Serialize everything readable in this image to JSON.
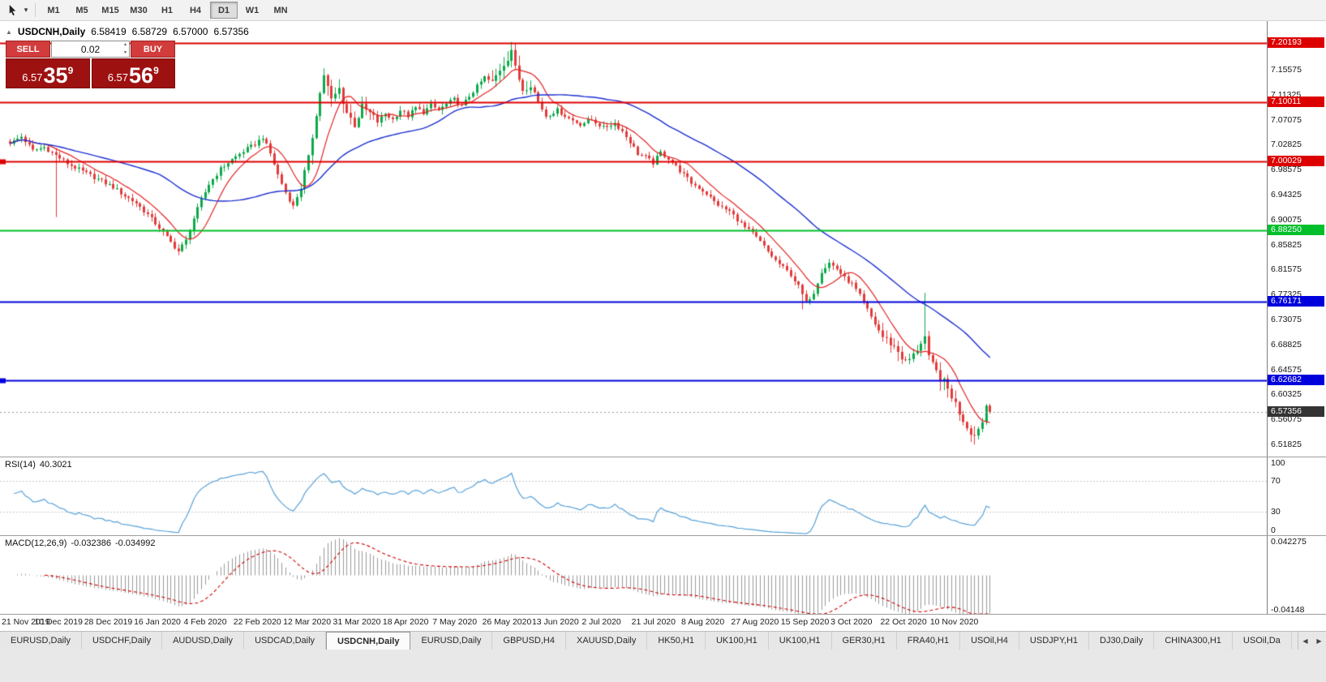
{
  "icons": {
    "collapse": "▲",
    "dropdown": "▾",
    "spinner_up": "▲",
    "spinner_down": "▼",
    "tab_scroll_left": "◀",
    "tab_scroll_right": "▶"
  },
  "toolbar": {
    "timeframes": [
      {
        "label": "M1",
        "active": false
      },
      {
        "label": "M5",
        "active": false
      },
      {
        "label": "M15",
        "active": false
      },
      {
        "label": "M30",
        "active": false
      },
      {
        "label": "H1",
        "active": false
      },
      {
        "label": "H4",
        "active": false
      },
      {
        "label": "D1",
        "active": true
      },
      {
        "label": "W1",
        "active": false
      },
      {
        "label": "MN",
        "active": false
      }
    ]
  },
  "chart": {
    "symbol_title": "USDCNH,Daily",
    "ohlc": {
      "open": "6.58419",
      "high": "6.58729",
      "low": "6.57000",
      "close": "6.57356"
    },
    "trade_panel": {
      "sell_label": "SELL",
      "buy_label": "BUY",
      "volume": "0.02",
      "sell_price": {
        "big": "6.57",
        "pips": "35",
        "sup": "9"
      },
      "buy_price": {
        "big": "6.57",
        "pips": "56",
        "sup": "9"
      }
    },
    "price_axis_labels": [
      "7.15575",
      "7.11325",
      "7.07075",
      "7.02825",
      "6.98575",
      "6.94325",
      "6.90075",
      "6.85825",
      "6.81575",
      "6.77325",
      "6.73075",
      "6.68825",
      "6.64575",
      "6.60325",
      "6.56075",
      "6.51825"
    ],
    "hlines": [
      {
        "price": 7.20193,
        "label": "7.20193",
        "color": "#dd0000",
        "width": 2,
        "left_marker": false
      },
      {
        "price": 7.10011,
        "label": "7.10011",
        "color": "#dd0000",
        "width": 2,
        "left_marker": false
      },
      {
        "price": 7.00029,
        "label": "7.00029",
        "color": "#dd0000",
        "width": 2,
        "left_marker": true
      },
      {
        "price": 6.8825,
        "label": "6.88250",
        "color": "#00bf2a",
        "width": 2,
        "left_marker": false
      },
      {
        "price": 6.76171,
        "label": "6.76171",
        "color": "#0000dd",
        "width": 2,
        "left_marker": false
      },
      {
        "price": 6.62682,
        "label": "6.62682",
        "color": "#0000dd",
        "width": 2,
        "left_marker": true
      }
    ],
    "current_price": {
      "value": 6.57356,
      "label": "6.57356",
      "color": "#333333"
    },
    "date_labels": [
      {
        "i": 0,
        "text": "21 Nov 2019"
      },
      {
        "i": 13,
        "text": "10 Dec 2019"
      },
      {
        "i": 26,
        "text": "28 Dec 2019"
      },
      {
        "i": 39,
        "text": "16 Jan 2020"
      },
      {
        "i": 52,
        "text": "4 Feb 2020"
      },
      {
        "i": 65,
        "text": "22 Feb 2020"
      },
      {
        "i": 78,
        "text": "12 Mar 2020"
      },
      {
        "i": 91,
        "text": "31 Mar 2020"
      },
      {
        "i": 104,
        "text": "18 Apr 2020"
      },
      {
        "i": 117,
        "text": "7 May 2020"
      },
      {
        "i": 130,
        "text": "26 May 2020"
      },
      {
        "i": 143,
        "text": "13 Jun 2020"
      },
      {
        "i": 156,
        "text": "2 Jul 2020"
      },
      {
        "i": 169,
        "text": "21 Jul 2020"
      },
      {
        "i": 182,
        "text": "8 Aug 2020"
      },
      {
        "i": 195,
        "text": "27 Aug 2020"
      },
      {
        "i": 208,
        "text": "15 Sep 2020"
      },
      {
        "i": 221,
        "text": "3 Oct 2020"
      },
      {
        "i": 234,
        "text": "22 Oct 2020"
      },
      {
        "i": 247,
        "text": "10 Nov 2020"
      }
    ]
  },
  "rsi": {
    "label": "RSI(14)",
    "value": "40.3021",
    "color": "#55a0d8",
    "levels": [
      "100",
      "70",
      "30",
      "0"
    ]
  },
  "macd": {
    "label": "MACD(12,26,9)",
    "value_main": "-0.032386",
    "value_signal": "-0.034992",
    "axis_top": "0.042275",
    "axis_bottom": "-0.04148",
    "bar_color": "#9a9a9a",
    "signal_color": "#d00000"
  },
  "tabs": [
    {
      "label": "EURUSD,Daily",
      "active": false
    },
    {
      "label": "USDCHF,Daily",
      "active": false
    },
    {
      "label": "AUDUSD,Daily",
      "active": false
    },
    {
      "label": "USDCAD,Daily",
      "active": false
    },
    {
      "label": "USDCNH,Daily",
      "active": true
    },
    {
      "label": "EURUSD,Daily",
      "active": false
    },
    {
      "label": "GBPUSD,H4",
      "active": false
    },
    {
      "label": "XAUUSD,Daily",
      "active": false
    },
    {
      "label": "HK50,H1",
      "active": false
    },
    {
      "label": "UK100,H1",
      "active": false
    },
    {
      "label": "UK100,H1",
      "active": false
    },
    {
      "label": "GER30,H1",
      "active": false
    },
    {
      "label": "FRA40,H1",
      "active": false
    },
    {
      "label": "USOil,H4",
      "active": false
    },
    {
      "label": "USDJPY,H1",
      "active": false
    },
    {
      "label": "DJ30,Daily",
      "active": false
    },
    {
      "label": "CHINA300,H1",
      "active": false
    },
    {
      "label": "USOil,Da",
      "active": false
    }
  ],
  "chart_data": {
    "type": "candlestick",
    "symbol": "USDCNH",
    "timeframe": "Daily",
    "candle_count": 257,
    "price_top": 7.2385,
    "price_bottom": 6.4975,
    "up_color": "#0ca94a",
    "down_color": "#e23b3b",
    "close_anchors": [
      [
        0,
        7.03
      ],
      [
        3,
        7.042
      ],
      [
        6,
        7.018
      ],
      [
        9,
        7.024
      ],
      [
        12,
        7.01
      ],
      [
        15,
        6.996
      ],
      [
        18,
        6.986
      ],
      [
        21,
        6.976
      ],
      [
        24,
        6.966
      ],
      [
        27,
        6.956
      ],
      [
        30,
        6.941
      ],
      [
        33,
        6.929
      ],
      [
        36,
        6.909
      ],
      [
        39,
        6.887
      ],
      [
        42,
        6.862
      ],
      [
        44,
        6.847
      ],
      [
        46,
        6.865
      ],
      [
        48,
        6.903
      ],
      [
        50,
        6.934
      ],
      [
        52,
        6.961
      ],
      [
        55,
        6.987
      ],
      [
        58,
        7.003
      ],
      [
        61,
        7.017
      ],
      [
        64,
        7.029
      ],
      [
        66,
        7.041
      ],
      [
        68,
        7.013
      ],
      [
        70,
        6.977
      ],
      [
        72,
        6.947
      ],
      [
        74,
        6.923
      ],
      [
        76,
        6.957
      ],
      [
        78,
        7.003
      ],
      [
        80,
        7.083
      ],
      [
        82,
        7.148
      ],
      [
        84,
        7.103
      ],
      [
        86,
        7.123
      ],
      [
        88,
        7.083
      ],
      [
        90,
        7.063
      ],
      [
        92,
        7.091
      ],
      [
        94,
        7.081
      ],
      [
        96,
        7.067
      ],
      [
        98,
        7.081
      ],
      [
        100,
        7.071
      ],
      [
        102,
        7.087
      ],
      [
        104,
        7.077
      ],
      [
        106,
        7.091
      ],
      [
        108,
        7.083
      ],
      [
        110,
        7.095
      ],
      [
        112,
        7.087
      ],
      [
        114,
        7.097
      ],
      [
        116,
        7.105
      ],
      [
        118,
        7.093
      ],
      [
        120,
        7.111
      ],
      [
        122,
        7.127
      ],
      [
        124,
        7.143
      ],
      [
        126,
        7.133
      ],
      [
        128,
        7.157
      ],
      [
        130,
        7.177
      ],
      [
        131,
        7.191
      ],
      [
        132,
        7.157
      ],
      [
        134,
        7.123
      ],
      [
        136,
        7.133
      ],
      [
        138,
        7.101
      ],
      [
        140,
        7.077
      ],
      [
        143,
        7.087
      ],
      [
        146,
        7.073
      ],
      [
        149,
        7.063
      ],
      [
        152,
        7.071
      ],
      [
        155,
        7.057
      ],
      [
        158,
        7.065
      ],
      [
        160,
        7.051
      ],
      [
        162,
        7.033
      ],
      [
        164,
        7.013
      ],
      [
        166,
        7.007
      ],
      [
        168,
        6.997
      ],
      [
        170,
        7.015
      ],
      [
        172,
        7.005
      ],
      [
        174,
        6.991
      ],
      [
        176,
        6.977
      ],
      [
        178,
        6.963
      ],
      [
        180,
        6.955
      ],
      [
        182,
        6.945
      ],
      [
        184,
        6.931
      ],
      [
        186,
        6.921
      ],
      [
        188,
        6.915
      ],
      [
        190,
        6.901
      ],
      [
        192,
        6.887
      ],
      [
        194,
        6.877
      ],
      [
        196,
        6.863
      ],
      [
        198,
        6.846
      ],
      [
        200,
        6.831
      ],
      [
        202,
        6.819
      ],
      [
        204,
        6.807
      ],
      [
        206,
        6.787
      ],
      [
        208,
        6.759
      ],
      [
        210,
        6.777
      ],
      [
        212,
        6.813
      ],
      [
        214,
        6.827
      ],
      [
        216,
        6.817
      ],
      [
        218,
        6.801
      ],
      [
        220,
        6.791
      ],
      [
        222,
        6.771
      ],
      [
        224,
        6.747
      ],
      [
        226,
        6.723
      ],
      [
        228,
        6.701
      ],
      [
        230,
        6.691
      ],
      [
        232,
        6.677
      ],
      [
        234,
        6.657
      ],
      [
        236,
        6.669
      ],
      [
        238,
        6.693
      ],
      [
        239,
        6.701
      ],
      [
        240,
        6.663
      ],
      [
        242,
        6.641
      ],
      [
        244,
        6.623
      ],
      [
        246,
        6.601
      ],
      [
        248,
        6.573
      ],
      [
        250,
        6.549
      ],
      [
        252,
        6.533
      ],
      [
        254,
        6.556
      ],
      [
        255,
        6.5842
      ],
      [
        256,
        6.57356
      ]
    ],
    "spikes": [
      {
        "i": 12,
        "low": 6.905
      },
      {
        "i": 44,
        "low": 6.84
      },
      {
        "i": 82,
        "high": 7.158
      },
      {
        "i": 131,
        "high": 7.1975
      },
      {
        "i": 207,
        "low": 6.748
      },
      {
        "i": 239,
        "high": 6.776
      },
      {
        "i": 252,
        "low": 6.518
      }
    ],
    "last_candle": {
      "o": 6.58419,
      "h": 6.58729,
      "l": 6.57,
      "c": 6.57356
    },
    "moving_averages": [
      {
        "period": 9,
        "color": "#e32222",
        "width": 1.2
      },
      {
        "period": 40,
        "color": "#1b2fd0",
        "width": 1.4
      }
    ],
    "rsi_period": 14,
    "macd_params": [
      12,
      26,
      9
    ],
    "macd_range": [
      -0.04148,
      0.042275
    ]
  }
}
